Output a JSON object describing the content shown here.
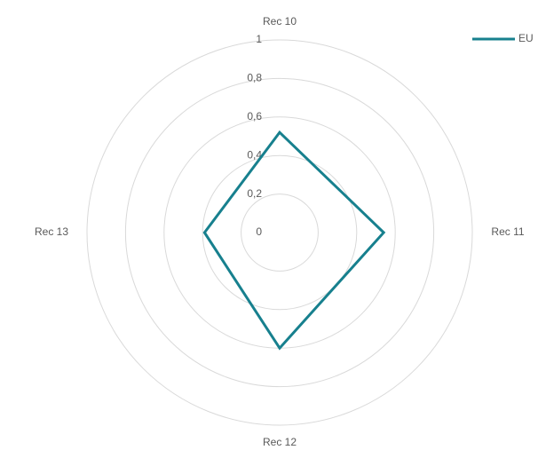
{
  "chart_data": {
    "type": "radar",
    "categories": [
      "Rec 10",
      "Rec 11",
      "Rec 12",
      "Rec 13"
    ],
    "series": [
      {
        "name": "EU",
        "color": "#17808e",
        "values": [
          0.52,
          0.54,
          0.6,
          0.39
        ]
      }
    ],
    "ylim": [
      0,
      1
    ],
    "yticks": [
      0,
      {
        "value": 0.2,
        "label": "0,2"
      },
      {
        "value": 0.4,
        "label": "0,4"
      },
      {
        "value": 0.6,
        "label": "0,6"
      },
      {
        "value": 0.8,
        "label": "0,8"
      },
      1
    ],
    "grid": true,
    "legend": "top-right"
  }
}
